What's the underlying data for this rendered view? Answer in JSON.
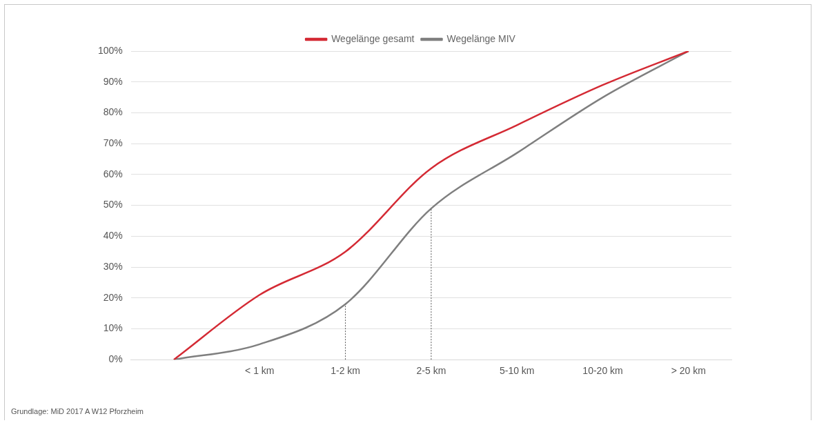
{
  "chart_data": {
    "type": "line",
    "categories": [
      null,
      "< 1 km",
      "1-2 km",
      "2-5 km",
      "5-10 km",
      "10-20 km",
      "> 20 km"
    ],
    "series": [
      {
        "name": "Wegelänge gesamt",
        "color": "#d42a34",
        "values": [
          0,
          21,
          35,
          62,
          76,
          89,
          100
        ]
      },
      {
        "name": "Wegelänge MIV",
        "color": "#7f7f7f",
        "values": [
          0,
          5,
          18,
          49,
          67,
          85,
          100
        ]
      }
    ],
    "ylim": [
      0,
      100
    ],
    "yticks": [
      {
        "value": 0,
        "label": "0%"
      },
      {
        "value": 10,
        "label": "10%"
      },
      {
        "value": 20,
        "label": "20%"
      },
      {
        "value": 30,
        "label": "30%"
      },
      {
        "value": 40,
        "label": "40%"
      },
      {
        "value": 50,
        "label": "50%"
      },
      {
        "value": 60,
        "label": "60%"
      },
      {
        "value": 70,
        "label": "70%"
      },
      {
        "value": 80,
        "label": "80%"
      },
      {
        "value": 90,
        "label": "90%"
      },
      {
        "value": 100,
        "label": "100%"
      }
    ],
    "ref_lines": [
      {
        "axis": "x",
        "value": "1-2 km",
        "line_style": "dotted",
        "color": "#555555"
      },
      {
        "axis": "x",
        "value": "2-5 km",
        "line_style": "dotted",
        "color": "#555555"
      }
    ],
    "grid": "y",
    "legend": "top",
    "marker": "none",
    "line_style": "solid",
    "annotations": [
      "Grundlage: MiD 2017 A W12 Pforzheim"
    ]
  }
}
